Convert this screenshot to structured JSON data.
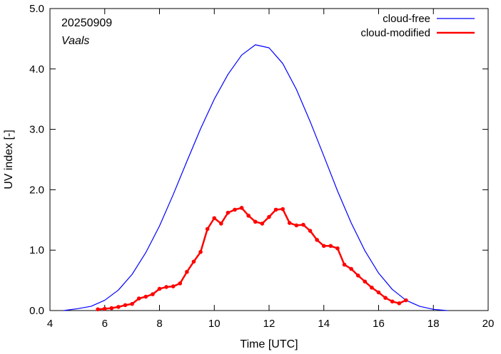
{
  "chart_data": {
    "type": "line",
    "title": "",
    "annotations": {
      "date": "20250909",
      "location": "Vaals"
    },
    "xlabel": "Time  [UTC]",
    "ylabel": "UV index  [-]",
    "xlim": [
      4,
      20
    ],
    "ylim": [
      0,
      5
    ],
    "xticks": [
      4,
      6,
      8,
      10,
      12,
      14,
      16,
      18,
      20
    ],
    "xtick_labels": [
      "4",
      "6",
      "8",
      "10",
      "12",
      "14",
      "16",
      "18",
      "20"
    ],
    "yticks": [
      0,
      1,
      2,
      3,
      4,
      5
    ],
    "ytick_labels": [
      "0.0",
      "1.0",
      "2.0",
      "3.0",
      "4.0",
      "5.0"
    ],
    "grid": false,
    "legend_position": "top-right",
    "series": [
      {
        "name": "cloud-free",
        "color": "#0000ff",
        "marker": false,
        "x": [
          4.5,
          5.0,
          5.5,
          6.0,
          6.5,
          7.0,
          7.5,
          8.0,
          8.5,
          9.0,
          9.5,
          10.0,
          10.5,
          11.0,
          11.5,
          12.0,
          12.5,
          13.0,
          13.5,
          14.0,
          14.5,
          15.0,
          15.5,
          16.0,
          16.5,
          17.0,
          17.5,
          18.0,
          18.5
        ],
        "y": [
          0.0,
          0.03,
          0.07,
          0.17,
          0.34,
          0.6,
          0.96,
          1.4,
          1.92,
          2.47,
          3.01,
          3.5,
          3.91,
          4.23,
          4.4,
          4.35,
          4.09,
          3.66,
          3.13,
          2.56,
          1.98,
          1.45,
          0.99,
          0.62,
          0.35,
          0.17,
          0.07,
          0.02,
          0.0
        ]
      },
      {
        "name": "cloud-modified",
        "color": "#ff0000",
        "marker": true,
        "x": [
          5.75,
          6.0,
          6.25,
          6.5,
          6.75,
          7.0,
          7.25,
          7.5,
          7.75,
          8.0,
          8.25,
          8.5,
          8.75,
          9.0,
          9.25,
          9.5,
          9.75,
          10.0,
          10.25,
          10.5,
          10.75,
          11.0,
          11.25,
          11.5,
          11.75,
          12.0,
          12.25,
          12.5,
          12.75,
          13.0,
          13.25,
          13.5,
          13.75,
          14.0,
          14.25,
          14.5,
          14.75,
          15.0,
          15.25,
          15.5,
          15.75,
          16.0,
          16.25,
          16.5,
          16.75,
          17.0
        ],
        "y": [
          0.02,
          0.03,
          0.04,
          0.06,
          0.09,
          0.11,
          0.2,
          0.23,
          0.27,
          0.36,
          0.39,
          0.4,
          0.45,
          0.64,
          0.81,
          0.97,
          1.35,
          1.53,
          1.44,
          1.62,
          1.67,
          1.7,
          1.57,
          1.47,
          1.44,
          1.55,
          1.67,
          1.68,
          1.45,
          1.41,
          1.42,
          1.32,
          1.17,
          1.07,
          1.07,
          1.03,
          0.76,
          0.69,
          0.58,
          0.48,
          0.38,
          0.3,
          0.21,
          0.15,
          0.12,
          0.17
        ]
      }
    ]
  }
}
